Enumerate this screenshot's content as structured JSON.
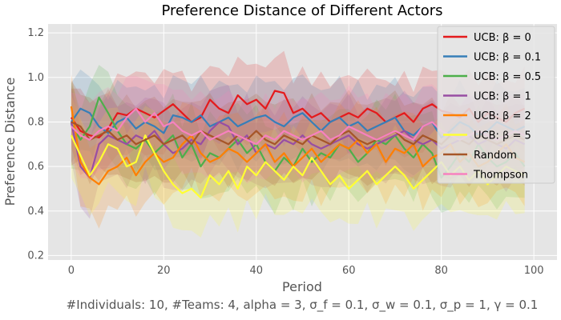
{
  "chart_data": {
    "type": "line",
    "title": "Preference Distance of Different Actors",
    "xlabel": "Period",
    "ylabel": "Preference Distance",
    "caption": "#Individuals: 10,  #Teams: 4,  alpha = 3,  σ_f = 0.1,  σ_w = 0.1,  σ_p = 1,  γ = 0.1",
    "xlim": [
      -5,
      105
    ],
    "ylim": [
      0.18,
      1.24
    ],
    "xticks": [
      0,
      20,
      40,
      60,
      80,
      100
    ],
    "yticks": [
      0.2,
      0.4,
      0.6,
      0.8,
      1.0,
      1.2
    ],
    "xtick_labels": [
      "0",
      "20",
      "40",
      "60",
      "80",
      "100"
    ],
    "ytick_labels": [
      "0.2",
      "0.4",
      "0.6",
      "0.8",
      "1.0",
      "1.2"
    ],
    "x_start": 0,
    "x_step": 2,
    "grid": true,
    "legend_position": "top-right",
    "series": [
      {
        "name": "UCB: β = 0",
        "color": "#e41a1c",
        "values": [
          0.82,
          0.76,
          0.74,
          0.73,
          0.77,
          0.84,
          0.83,
          0.86,
          0.84,
          0.82,
          0.85,
          0.88,
          0.84,
          0.8,
          0.82,
          0.9,
          0.86,
          0.84,
          0.92,
          0.88,
          0.9,
          0.86,
          0.94,
          0.93,
          0.84,
          0.86,
          0.82,
          0.84,
          0.8,
          0.82,
          0.84,
          0.82,
          0.86,
          0.84,
          0.8,
          0.82,
          0.84,
          0.8,
          0.86,
          0.88,
          0.85,
          0.84,
          0.82,
          0.86,
          0.8,
          0.84,
          0.82,
          0.8,
          0.84,
          0.86
        ]
      },
      {
        "name": "UCB: β = 0.1",
        "color": "#377eb8",
        "values": [
          0.8,
          0.86,
          0.84,
          0.78,
          0.75,
          0.8,
          0.82,
          0.77,
          0.8,
          0.78,
          0.75,
          0.83,
          0.82,
          0.8,
          0.83,
          0.78,
          0.8,
          0.82,
          0.78,
          0.8,
          0.82,
          0.83,
          0.8,
          0.78,
          0.82,
          0.84,
          0.8,
          0.76,
          0.8,
          0.82,
          0.78,
          0.8,
          0.76,
          0.78,
          0.8,
          0.82,
          0.76,
          0.74,
          0.78,
          0.8,
          0.73,
          0.76,
          0.8,
          0.78,
          0.74,
          0.76,
          0.8,
          0.78,
          0.76,
          0.78
        ]
      },
      {
        "name": "UCB: β = 0.5",
        "color": "#4daf4a",
        "values": [
          0.79,
          0.72,
          0.78,
          0.91,
          0.84,
          0.76,
          0.7,
          0.68,
          0.72,
          0.66,
          0.7,
          0.74,
          0.64,
          0.7,
          0.6,
          0.66,
          0.64,
          0.68,
          0.72,
          0.66,
          0.7,
          0.62,
          0.58,
          0.64,
          0.6,
          0.68,
          0.62,
          0.66,
          0.64,
          0.7,
          0.68,
          0.62,
          0.66,
          0.72,
          0.7,
          0.74,
          0.68,
          0.64,
          0.7,
          0.66,
          0.55,
          0.6,
          0.66,
          0.62,
          0.7,
          0.64,
          0.6,
          0.62,
          0.66,
          0.6
        ]
      },
      {
        "name": "UCB: β = 1",
        "color": "#984ea3",
        "values": [
          0.8,
          0.6,
          0.55,
          0.7,
          0.74,
          0.72,
          0.7,
          0.74,
          0.72,
          0.76,
          0.7,
          0.66,
          0.68,
          0.72,
          0.7,
          0.76,
          0.8,
          0.78,
          0.7,
          0.74,
          0.66,
          0.7,
          0.68,
          0.72,
          0.7,
          0.74,
          0.7,
          0.68,
          0.7,
          0.72,
          0.74,
          0.7,
          0.68,
          0.7,
          0.72,
          0.74,
          0.76,
          0.72,
          0.7,
          0.72,
          0.68,
          0.7,
          0.72,
          0.74,
          0.7,
          0.72,
          0.7,
          0.68,
          0.72,
          0.7
        ]
      },
      {
        "name": "UCB: β = 2",
        "color": "#ff7f00",
        "values": [
          0.87,
          0.62,
          0.55,
          0.52,
          0.58,
          0.6,
          0.64,
          0.56,
          0.62,
          0.66,
          0.62,
          0.64,
          0.7,
          0.74,
          0.66,
          0.62,
          0.64,
          0.68,
          0.66,
          0.62,
          0.66,
          0.7,
          0.62,
          0.66,
          0.6,
          0.64,
          0.68,
          0.62,
          0.66,
          0.7,
          0.68,
          0.72,
          0.66,
          0.7,
          0.62,
          0.68,
          0.66,
          0.7,
          0.6,
          0.64,
          0.66,
          0.7,
          0.62,
          0.66,
          0.6,
          0.62,
          0.66,
          0.7,
          0.64,
          0.62
        ]
      },
      {
        "name": "UCB: β = 5",
        "color": "#ffff33",
        "values": [
          0.74,
          0.65,
          0.56,
          0.62,
          0.7,
          0.68,
          0.6,
          0.62,
          0.74,
          0.66,
          0.58,
          0.52,
          0.48,
          0.5,
          0.46,
          0.56,
          0.52,
          0.58,
          0.5,
          0.6,
          0.56,
          0.62,
          0.58,
          0.54,
          0.6,
          0.56,
          0.64,
          0.58,
          0.52,
          0.56,
          0.5,
          0.54,
          0.58,
          0.52,
          0.56,
          0.6,
          0.56,
          0.5,
          0.54,
          0.58,
          0.62,
          0.56,
          0.6,
          0.54,
          0.58,
          0.52,
          0.56,
          0.6,
          0.58,
          0.56
        ]
      },
      {
        "name": "Random",
        "color": "#a65628",
        "values": [
          0.8,
          0.78,
          0.72,
          0.74,
          0.76,
          0.72,
          0.74,
          0.7,
          0.72,
          0.74,
          0.7,
          0.72,
          0.74,
          0.7,
          0.76,
          0.74,
          0.72,
          0.7,
          0.74,
          0.72,
          0.76,
          0.72,
          0.7,
          0.74,
          0.72,
          0.7,
          0.74,
          0.72,
          0.7,
          0.74,
          0.76,
          0.72,
          0.7,
          0.72,
          0.74,
          0.76,
          0.72,
          0.7,
          0.74,
          0.72,
          0.7,
          0.74,
          0.72,
          0.7,
          0.74,
          0.72,
          0.7,
          0.72,
          0.74,
          0.72
        ]
      },
      {
        "name": "Thompson",
        "color": "#f781bf",
        "values": [
          0.78,
          0.74,
          0.72,
          0.76,
          0.78,
          0.76,
          0.82,
          0.86,
          0.8,
          0.84,
          0.78,
          0.8,
          0.76,
          0.74,
          0.76,
          0.72,
          0.74,
          0.76,
          0.74,
          0.72,
          0.7,
          0.74,
          0.72,
          0.76,
          0.74,
          0.72,
          0.74,
          0.76,
          0.72,
          0.74,
          0.78,
          0.76,
          0.74,
          0.72,
          0.74,
          0.76,
          0.74,
          0.72,
          0.78,
          0.8,
          0.76,
          0.74,
          0.72,
          0.74,
          0.76,
          0.74,
          0.72,
          0.74,
          0.76,
          0.74
        ]
      }
    ]
  }
}
